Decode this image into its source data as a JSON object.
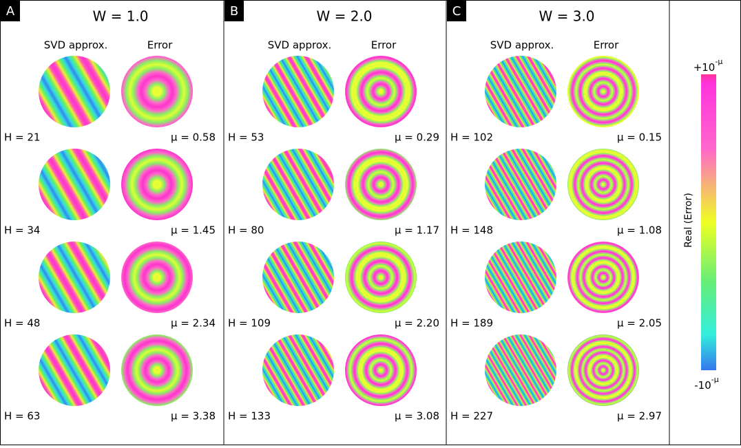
{
  "panels": [
    {
      "label": "A",
      "title": "W = 1.0",
      "columns": [
        "SVD approx.",
        "Error"
      ],
      "rows": [
        {
          "h": "H = 21",
          "mu": "μ = 0.58"
        },
        {
          "h": "H = 34",
          "mu": "μ = 1.45"
        },
        {
          "h": "H = 48",
          "mu": "μ = 2.34"
        },
        {
          "h": "H = 63",
          "mu": "μ = 3.38"
        }
      ]
    },
    {
      "label": "B",
      "title": "W = 2.0",
      "columns": [
        "SVD approx.",
        "Error"
      ],
      "rows": [
        {
          "h": "H = 53",
          "mu": "μ = 0.29"
        },
        {
          "h": "H = 80",
          "mu": "μ = 1.17"
        },
        {
          "h": "H = 109",
          "mu": "μ = 2.20"
        },
        {
          "h": "H = 133",
          "mu": "μ = 3.08"
        }
      ]
    },
    {
      "label": "C",
      "title": "W = 3.0",
      "columns": [
        "SVD approx.",
        "Error"
      ],
      "rows": [
        {
          "h": "H = 102",
          "mu": "μ = 0.15"
        },
        {
          "h": "H = 148",
          "mu": "μ = 1.08"
        },
        {
          "h": "H = 189",
          "mu": "μ = 2.05"
        },
        {
          "h": "H = 227",
          "mu": "μ = 2.97"
        }
      ]
    }
  ],
  "colorbar": {
    "top": {
      "base": "+10",
      "exponent": "-μ"
    },
    "bottom": {
      "base": "-10",
      "exponent": "-μ"
    },
    "label": "Real (Error)"
  }
}
